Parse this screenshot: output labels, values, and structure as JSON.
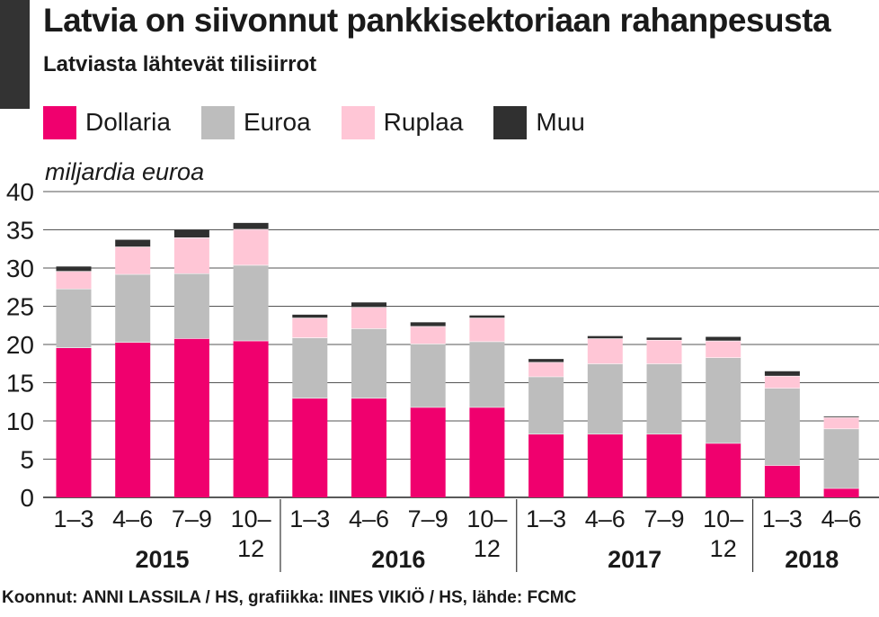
{
  "header": {
    "title": "Latvia on siivonnut pankkisektoriaan rahanpesusta",
    "subtitle": "Latviasta lähtevät tilisiirrot"
  },
  "legend": [
    {
      "label": "Dollaria",
      "color": "#f0006e"
    },
    {
      "label": "Euroa",
      "color": "#bdbdbd"
    },
    {
      "label": "Ruplaa",
      "color": "#ffc6d6"
    },
    {
      "label": "Muu",
      "color": "#303030"
    }
  ],
  "unit_label": "miljardia euroa",
  "source": "Koonnut: ANNI LASSILA / HS, grafiikka: IINES VIKIÖ / HS, lähde: FCMC",
  "chart_data": {
    "type": "bar",
    "stacked": true,
    "ylabel": "miljardia euroa",
    "ylim": [
      0,
      40
    ],
    "yticks": [
      0,
      5,
      10,
      15,
      20,
      25,
      30,
      35,
      40
    ],
    "grid": true,
    "categories": [
      "1–3",
      "4–6",
      "7–9",
      "10–12",
      "1–3",
      "4–6",
      "7–9",
      "10–12",
      "1–3",
      "4–6",
      "7–9",
      "10–12",
      "1–3",
      "4–6"
    ],
    "category_lines": [
      [
        "1–3"
      ],
      [
        "4–6"
      ],
      [
        "7–9"
      ],
      [
        "10–",
        "12"
      ],
      [
        "1–3"
      ],
      [
        "4–6"
      ],
      [
        "7–9"
      ],
      [
        "10–",
        "12"
      ],
      [
        "1–3"
      ],
      [
        "4–6"
      ],
      [
        "7–9"
      ],
      [
        "10–",
        "12"
      ],
      [
        "1–3"
      ],
      [
        "4–6"
      ]
    ],
    "groups": [
      {
        "label": "2015",
        "count": 4
      },
      {
        "label": "2016",
        "count": 4
      },
      {
        "label": "2017",
        "count": 4
      },
      {
        "label": "2018",
        "count": 2
      }
    ],
    "series": [
      {
        "name": "Dollaria",
        "color": "#f0006e",
        "values": [
          19.6,
          20.3,
          20.8,
          20.5,
          13.0,
          13.0,
          11.8,
          11.8,
          8.3,
          8.3,
          8.3,
          7.1,
          4.2,
          1.2
        ]
      },
      {
        "name": "Euroa",
        "color": "#bdbdbd",
        "values": [
          7.7,
          8.9,
          8.5,
          9.9,
          7.9,
          9.1,
          8.3,
          8.6,
          7.5,
          9.2,
          9.2,
          11.2,
          10.1,
          7.8
        ]
      },
      {
        "name": "Ruplaa",
        "color": "#ffc6d6",
        "values": [
          2.3,
          3.6,
          4.7,
          4.7,
          2.6,
          2.8,
          2.3,
          3.1,
          1.9,
          3.3,
          3.1,
          2.2,
          1.6,
          1.5
        ]
      },
      {
        "name": "Muu",
        "color": "#303030",
        "values": [
          0.6,
          0.9,
          1.0,
          0.8,
          0.4,
          0.6,
          0.5,
          0.3,
          0.4,
          0.3,
          0.3,
          0.5,
          0.6,
          0.1
        ]
      }
    ]
  }
}
